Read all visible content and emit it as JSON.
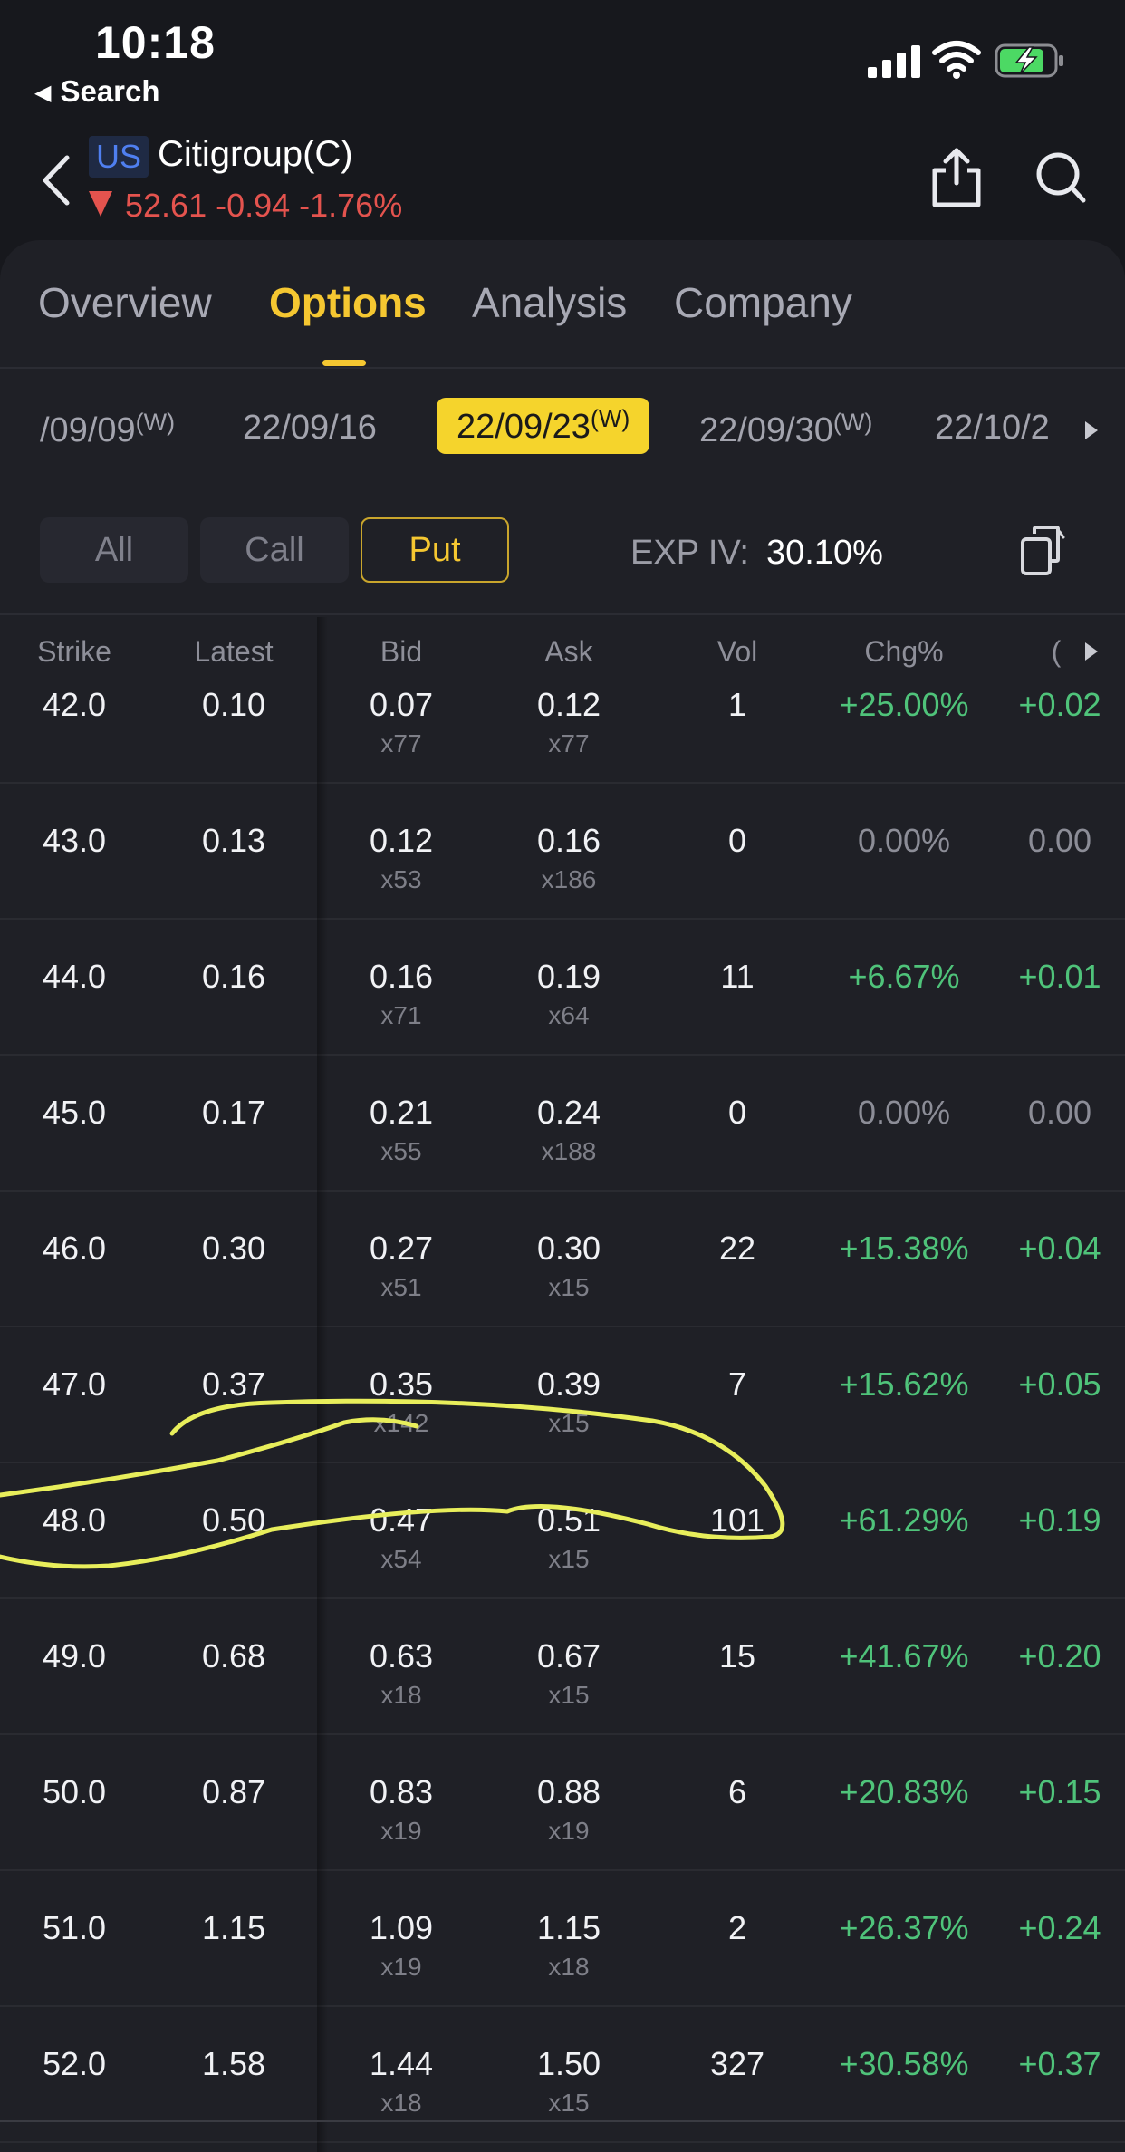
{
  "status_bar": {
    "time": "10:18",
    "back_app_label": "Search"
  },
  "header": {
    "market_badge": "US",
    "stock_name": "Citigroup(C)",
    "quote": "52.61 -0.94 -1.76%",
    "colors": {
      "down": "#e4534e",
      "accent": "#f5c731",
      "positive": "#4fc37a"
    },
    "icons": [
      "back-arrow-icon",
      "share-icon",
      "search-icon"
    ]
  },
  "tabs": [
    {
      "label": "Overview",
      "active": false
    },
    {
      "label": "Options",
      "active": true
    },
    {
      "label": "Analysis",
      "active": false
    },
    {
      "label": "Company",
      "active": false
    }
  ],
  "expirations": [
    {
      "date": "/09/09",
      "tag": "(W)",
      "active": false
    },
    {
      "date": "22/09/16",
      "tag": "",
      "active": false
    },
    {
      "date": "22/09/23",
      "tag": "(W)",
      "active": true
    },
    {
      "date": "22/09/30",
      "tag": "(W)",
      "active": false
    },
    {
      "date": "22/10/2",
      "tag": "",
      "active": false
    }
  ],
  "filters": [
    {
      "label": "All",
      "active": false
    },
    {
      "label": "Call",
      "active": false
    },
    {
      "label": "Put",
      "active": true
    }
  ],
  "exp_iv": {
    "label": "EXP IV:",
    "value": "30.10%"
  },
  "columns": [
    "Strike",
    "Latest",
    "Bid",
    "Ask",
    "Vol",
    "Chg%",
    "("
  ],
  "rows": [
    {
      "strike": "42.0",
      "latest": "0.10",
      "bid": "0.07",
      "bid_size": "x77",
      "ask": "0.12",
      "ask_size": "x77",
      "vol": "1",
      "chg_pct": "+25.00%",
      "chg": "+0.02"
    },
    {
      "strike": "43.0",
      "latest": "0.13",
      "bid": "0.12",
      "bid_size": "x53",
      "ask": "0.16",
      "ask_size": "x186",
      "vol": "0",
      "chg_pct": "0.00%",
      "chg": "0.00"
    },
    {
      "strike": "44.0",
      "latest": "0.16",
      "bid": "0.16",
      "bid_size": "x71",
      "ask": "0.19",
      "ask_size": "x64",
      "vol": "11",
      "chg_pct": "+6.67%",
      "chg": "+0.01"
    },
    {
      "strike": "45.0",
      "latest": "0.17",
      "bid": "0.21",
      "bid_size": "x55",
      "ask": "0.24",
      "ask_size": "x188",
      "vol": "0",
      "chg_pct": "0.00%",
      "chg": "0.00"
    },
    {
      "strike": "46.0",
      "latest": "0.30",
      "bid": "0.27",
      "bid_size": "x51",
      "ask": "0.30",
      "ask_size": "x15",
      "vol": "22",
      "chg_pct": "+15.38%",
      "chg": "+0.04"
    },
    {
      "strike": "47.0",
      "latest": "0.37",
      "bid": "0.35",
      "bid_size": "x142",
      "ask": "0.39",
      "ask_size": "x15",
      "vol": "7",
      "chg_pct": "+15.62%",
      "chg": "+0.05"
    },
    {
      "strike": "48.0",
      "latest": "0.50",
      "bid": "0.47",
      "bid_size": "x54",
      "ask": "0.51",
      "ask_size": "x15",
      "vol": "101",
      "chg_pct": "+61.29%",
      "chg": "+0.19"
    },
    {
      "strike": "49.0",
      "latest": "0.68",
      "bid": "0.63",
      "bid_size": "x18",
      "ask": "0.67",
      "ask_size": "x15",
      "vol": "15",
      "chg_pct": "+41.67%",
      "chg": "+0.20"
    },
    {
      "strike": "50.0",
      "latest": "0.87",
      "bid": "0.83",
      "bid_size": "x19",
      "ask": "0.88",
      "ask_size": "x19",
      "vol": "6",
      "chg_pct": "+20.83%",
      "chg": "+0.15"
    },
    {
      "strike": "51.0",
      "latest": "1.15",
      "bid": "1.09",
      "bid_size": "x19",
      "ask": "1.15",
      "ask_size": "x18",
      "vol": "2",
      "chg_pct": "+26.37%",
      "chg": "+0.24"
    },
    {
      "strike": "52.0",
      "latest": "1.58",
      "bid": "1.44",
      "bid_size": "x18",
      "ask": "1.50",
      "ask_size": "x15",
      "vol": "327",
      "chg_pct": "+30.58%",
      "chg": "+0.37"
    }
  ]
}
